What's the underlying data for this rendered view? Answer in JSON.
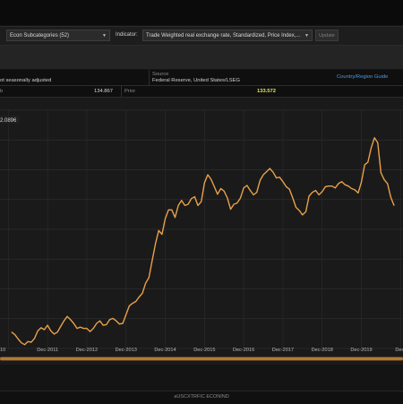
{
  "toolbar": {
    "category_select": "Econ Subcategories (52)",
    "indicator_label": "Indicator:",
    "indicator_select": "Trade Weighted real exchange rate, Standardized, Price Index,...",
    "update_label": "Update"
  },
  "meta": {
    "adjustment_text": "ot seasonally adjusted",
    "source_label": "Source",
    "source_value": "Federal Reserve, United States/LSEG",
    "guide_link": "Country/Region Guide",
    "prev_label": "b",
    "prev_value": "134.867",
    "prior_label": "Prior",
    "prior_value": "133.572"
  },
  "chart_data": {
    "type": "line",
    "title": "",
    "xlabel": "",
    "ylabel": "",
    "cursor_value_label": "2.0896",
    "x_tick_labels": [
      "10",
      "Dec-2011",
      "Dec-2012",
      "Dec-2013",
      "Dec-2014",
      "Dec-2015",
      "Dec-2016",
      "Dec-2017",
      "Dec-2018",
      "Dec-2019",
      "Dec-"
    ],
    "ylim": [
      92,
      130
    ],
    "grid": true,
    "series": [
      {
        "color": "#e9a04a",
        "x": [
          "2011-01",
          "2011-02",
          "2011-03",
          "2011-04",
          "2011-05",
          "2011-06",
          "2011-07",
          "2011-08",
          "2011-09",
          "2011-10",
          "2011-11",
          "2011-12",
          "2012-01",
          "2012-02",
          "2012-03",
          "2012-04",
          "2012-05",
          "2012-06",
          "2012-07",
          "2012-08",
          "2012-09",
          "2012-10",
          "2012-11",
          "2012-12",
          "2013-01",
          "2013-02",
          "2013-03",
          "2013-04",
          "2013-05",
          "2013-06",
          "2013-07",
          "2013-08",
          "2013-09",
          "2013-10",
          "2013-11",
          "2013-12",
          "2014-01",
          "2014-02",
          "2014-03",
          "2014-04",
          "2014-05",
          "2014-06",
          "2014-07",
          "2014-08",
          "2014-09",
          "2014-10",
          "2014-11",
          "2014-12",
          "2015-01",
          "2015-02",
          "2015-03",
          "2015-04",
          "2015-05",
          "2015-06",
          "2015-07",
          "2015-08",
          "2015-09",
          "2015-10",
          "2015-11",
          "2015-12",
          "2016-01",
          "2016-02",
          "2016-03",
          "2016-04",
          "2016-05",
          "2016-06",
          "2016-07",
          "2016-08",
          "2016-09",
          "2016-10",
          "2016-11",
          "2016-12",
          "2017-01",
          "2017-02",
          "2017-03",
          "2017-04",
          "2017-05",
          "2017-06",
          "2017-07",
          "2017-08",
          "2017-09",
          "2017-10",
          "2017-11",
          "2017-12",
          "2018-01",
          "2018-02",
          "2018-03",
          "2018-04",
          "2018-05",
          "2018-06",
          "2018-07",
          "2018-08",
          "2018-09",
          "2018-10",
          "2018-11",
          "2018-12",
          "2019-01",
          "2019-02",
          "2019-03",
          "2019-04",
          "2019-05",
          "2019-06",
          "2019-07",
          "2019-08",
          "2019-09",
          "2019-10",
          "2019-11",
          "2019-12",
          "2020-01",
          "2020-02",
          "2020-03",
          "2020-04",
          "2020-05",
          "2020-06",
          "2020-07",
          "2020-08",
          "2020-09",
          "2020-10"
        ],
        "values": [
          94.6,
          94.2,
          93.5,
          92.9,
          92.6,
          93.1,
          93.0,
          93.6,
          94.8,
          95.3,
          95.0,
          95.7,
          94.8,
          94.3,
          94.6,
          95.5,
          96.4,
          97.1,
          96.6,
          96.0,
          95.2,
          95.4,
          95.2,
          95.2,
          94.7,
          95.2,
          96.0,
          96.4,
          95.7,
          95.8,
          96.6,
          96.8,
          96.4,
          95.9,
          96.0,
          97.4,
          98.8,
          99.2,
          99.5,
          100.2,
          100.8,
          102.4,
          103.3,
          106.0,
          108.7,
          110.8,
          110.2,
          112.7,
          114.1,
          114.1,
          112.9,
          114.8,
          115.6,
          114.8,
          115.0,
          115.9,
          116.2,
          114.8,
          115.4,
          118.4,
          119.7,
          119.0,
          117.8,
          116.6,
          117.5,
          117.1,
          116.0,
          114.2,
          115.0,
          115.2,
          116.0,
          117.6,
          118.0,
          117.2,
          116.5,
          116.9,
          118.8,
          119.7,
          120.2,
          120.7,
          120.1,
          119.2,
          119.3,
          118.6,
          117.8,
          117.4,
          116.0,
          114.5,
          114.0,
          113.3,
          113.8,
          116.3,
          116.9,
          117.2,
          116.5,
          117.0,
          117.8,
          117.9,
          117.9,
          117.6,
          118.3,
          118.6,
          118.1,
          117.9,
          117.5,
          117.3,
          116.8,
          118.5,
          121.3,
          121.7,
          124.0,
          125.6,
          124.8,
          120.0,
          118.9,
          118.3,
          116.1,
          114.8
        ]
      }
    ]
  }
}
